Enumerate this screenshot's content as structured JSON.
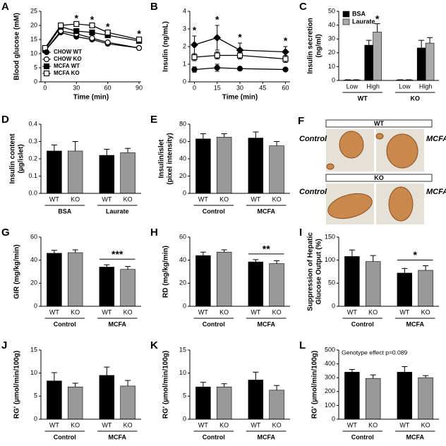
{
  "chart_data": [
    {
      "type": "line",
      "panel": "A",
      "ylabel": [
        "Blood glucose (mM)"
      ],
      "xlabel": "Time (min)",
      "x": [
        0,
        15,
        30,
        45,
        60,
        90
      ],
      "xlim": [
        -4,
        92
      ],
      "xticks": [
        0,
        30,
        60,
        90
      ],
      "ylim": [
        0,
        25
      ],
      "yticks": [
        0,
        5,
        10,
        15,
        20,
        25
      ],
      "legend": "lower left",
      "series": [
        {
          "name": "CHOW WT",
          "color": "#000000",
          "marker": "circle",
          "filled": true,
          "values": [
            11,
            17.5,
            16,
            15,
            13.5,
            12
          ]
        },
        {
          "name": "CHOW KO",
          "color": "#000000",
          "marker": "circle",
          "filled": false,
          "values": [
            11,
            18,
            17,
            15.5,
            14,
            12
          ]
        },
        {
          "name": "MCFA WT",
          "color": "#000000",
          "marker": "square",
          "filled": true,
          "values": [
            11.5,
            19.5,
            18,
            17.5,
            16.5,
            14.5
          ]
        },
        {
          "name": "MCFA KO",
          "color": "#000000",
          "marker": "square",
          "filled": false,
          "values": [
            12,
            20,
            20.5,
            20,
            17.5,
            15
          ]
        }
      ],
      "annotations": [
        {
          "x": 30,
          "text": "*"
        },
        {
          "x": 45,
          "text": "*"
        },
        {
          "x": 60,
          "text": "*"
        },
        {
          "x": 90,
          "text": "*"
        }
      ]
    },
    {
      "type": "line",
      "panel": "B",
      "ylabel": [
        "Insulin (ng/mL)"
      ],
      "xlabel": "Time (min)",
      "x": [
        0,
        15,
        30,
        60
      ],
      "xlim": [
        -3,
        63
      ],
      "xticks": [
        0,
        15,
        30,
        45,
        60
      ],
      "ylim": [
        0,
        4
      ],
      "yticks": [
        0,
        1,
        2,
        3,
        4
      ],
      "series": [
        {
          "color": "#000000",
          "marker": "diamond",
          "filled": true,
          "values": [
            2.1,
            2.5,
            1.8,
            1.7
          ],
          "errors": [
            0.5,
            0.7,
            0.4,
            0.3
          ]
        },
        {
          "color": "#000000",
          "marker": "square",
          "filled": false,
          "values": [
            1.4,
            1.5,
            1.5,
            1.3
          ],
          "errors": [
            0.2,
            0.2,
            0.2,
            0.2
          ]
        },
        {
          "color": "#000000",
          "marker": "circle",
          "filled": true,
          "values": [
            0.7,
            0.8,
            0.75,
            0.7
          ],
          "errors": [
            0.15,
            0.2,
            0.1,
            0.1
          ]
        }
      ],
      "annotations": [
        {
          "x": 0,
          "text": "*"
        },
        {
          "x": 15,
          "text": "*"
        },
        {
          "x": 30,
          "text": "*"
        },
        {
          "x": 60,
          "text": "*"
        }
      ]
    },
    {
      "type": "bar",
      "panel": "C",
      "ylabel": [
        "Insulin secretion",
        "(ng/ml)"
      ],
      "categories": [
        "Low",
        "High",
        "Low",
        "High"
      ],
      "groups": [
        "WT",
        "KO"
      ],
      "ylim": [
        0,
        50
      ],
      "yticks": [
        0,
        10,
        20,
        30,
        40,
        50
      ],
      "legend": "upper left",
      "significance": "*",
      "series": [
        {
          "name": "BSA",
          "color": "#000000",
          "values": [
            0.3,
            25.5,
            0.3,
            23.5
          ],
          "errors": [
            0.2,
            3.5,
            0.2,
            5.5
          ]
        },
        {
          "name": "Laurate",
          "color": "#aaaaaa",
          "values": [
            0.3,
            35,
            0.3,
            27
          ],
          "errors": [
            0.2,
            6,
            0.2,
            4
          ]
        }
      ]
    },
    {
      "type": "bar",
      "panel": "D",
      "ylabel": [
        "Insulin content",
        "(µg/islet)"
      ],
      "categories": [
        "WT",
        "KO",
        "WT",
        "KO"
      ],
      "groups": [
        "BSA",
        "Laurate"
      ],
      "ylim": [
        0,
        0.4
      ],
      "yticks": [
        {
          "value": 0,
          "label": "0.0"
        },
        0.1,
        0.2,
        0.3,
        0.4
      ],
      "values": [
        0.245,
        0.245,
        0.22,
        0.235
      ],
      "errors": [
        0.035,
        0.055,
        0.035,
        0.025
      ],
      "colors": [
        "#000000",
        "#999999",
        "#000000",
        "#999999"
      ]
    },
    {
      "type": "bar",
      "panel": "E",
      "ylabel": [
        "Insulin/islet",
        "(pixel intensity)"
      ],
      "categories": [
        "WT",
        "KO",
        "WT",
        "KO"
      ],
      "groups": [
        "Control",
        "MCFA"
      ],
      "ylim": [
        0,
        80
      ],
      "yticks": [
        0,
        20,
        40,
        60,
        80
      ],
      "values": [
        63,
        65,
        64,
        55
      ],
      "errors": [
        6,
        4,
        7,
        5
      ],
      "colors": [
        "#000000",
        "#999999",
        "#000000",
        "#999999"
      ]
    },
    {
      "type": "bar",
      "panel": "G",
      "ylabel": [
        "GIR (mg/kg/min)"
      ],
      "categories": [
        "WT",
        "KO",
        "WT",
        "KO"
      ],
      "groups": [
        "Control",
        "MCFA"
      ],
      "ylim": [
        0,
        60
      ],
      "yticks": [
        0,
        20,
        40,
        60
      ],
      "significance": "***",
      "values": [
        46,
        46.5,
        34,
        32
      ],
      "errors": [
        2.5,
        2.5,
        2,
        2.5
      ],
      "colors": [
        "#000000",
        "#999999",
        "#000000",
        "#999999"
      ]
    },
    {
      "type": "bar",
      "panel": "H",
      "ylabel": [
        "RD (mg/kg/min)"
      ],
      "categories": [
        "WT",
        "KO",
        "WT",
        "KO"
      ],
      "groups": [
        "Control",
        "MCFA"
      ],
      "ylim": [
        0,
        60
      ],
      "yticks": [
        0,
        20,
        40,
        60
      ],
      "significance": "**",
      "values": [
        44,
        47,
        38.5,
        37
      ],
      "errors": [
        3,
        2,
        2,
        2.5
      ],
      "colors": [
        "#000000",
        "#999999",
        "#000000",
        "#999999"
      ]
    },
    {
      "type": "bar",
      "panel": "I",
      "ylabel": [
        "Suppression of Hepatic",
        "Glucose Output (%)"
      ],
      "categories": [
        "WT",
        "KO",
        "WT",
        "KO"
      ],
      "groups": [
        "Control",
        "MCFA"
      ],
      "ylim": [
        0,
        150
      ],
      "yticks": [
        0,
        50,
        100,
        150
      ],
      "significance": "*",
      "values": [
        108,
        97,
        72,
        78
      ],
      "errors": [
        14,
        13,
        10,
        10
      ],
      "colors": [
        "#000000",
        "#999999",
        "#000000",
        "#999999"
      ]
    },
    {
      "type": "bar",
      "panel": "J",
      "ylabel": [
        "RG' (µmol/min/100g)"
      ],
      "categories": [
        "WT",
        "KO",
        "WT",
        "KO"
      ],
      "groups": [
        "Control",
        "MCFA"
      ],
      "ylim": [
        0,
        15
      ],
      "yticks": [
        0,
        5,
        10,
        15
      ],
      "values": [
        8.3,
        7,
        9.5,
        7.2
      ],
      "errors": [
        1.8,
        0.8,
        1.8,
        1.2
      ],
      "colors": [
        "#000000",
        "#999999",
        "#000000",
        "#999999"
      ]
    },
    {
      "type": "bar",
      "panel": "K",
      "ylabel": [
        "RG' (µmol/min/100g)"
      ],
      "categories": [
        "WT",
        "KO",
        "WT",
        "KO"
      ],
      "groups": [
        "Control",
        "MCFA"
      ],
      "ylim": [
        0,
        15
      ],
      "yticks": [
        0,
        5,
        10,
        15
      ],
      "values": [
        7,
        7,
        8.5,
        6.3
      ],
      "errors": [
        1,
        0.7,
        1.7,
        1
      ],
      "colors": [
        "#000000",
        "#999999",
        "#000000",
        "#999999"
      ]
    },
    {
      "type": "bar",
      "panel": "L",
      "ylabel": [
        "RG' (µmol/min/100g)"
      ],
      "note": "Genotype effect p=0.089",
      "categories": [
        "WT",
        "KO",
        "WT",
        "KO"
      ],
      "groups": [
        "Control",
        "MCFA"
      ],
      "ylim": [
        0,
        500
      ],
      "yticks": [
        0,
        100,
        200,
        300,
        400,
        500
      ],
      "values": [
        340,
        295,
        340,
        300
      ],
      "errors": [
        20,
        25,
        40,
        15
      ],
      "colors": [
        "#000000",
        "#999999",
        "#000000",
        "#999999"
      ]
    }
  ],
  "micrograph_panel": {
    "panel": "F",
    "top_label": "WT",
    "bottom_label": "KO",
    "left_label": "Control",
    "right_label": "MCFA"
  }
}
